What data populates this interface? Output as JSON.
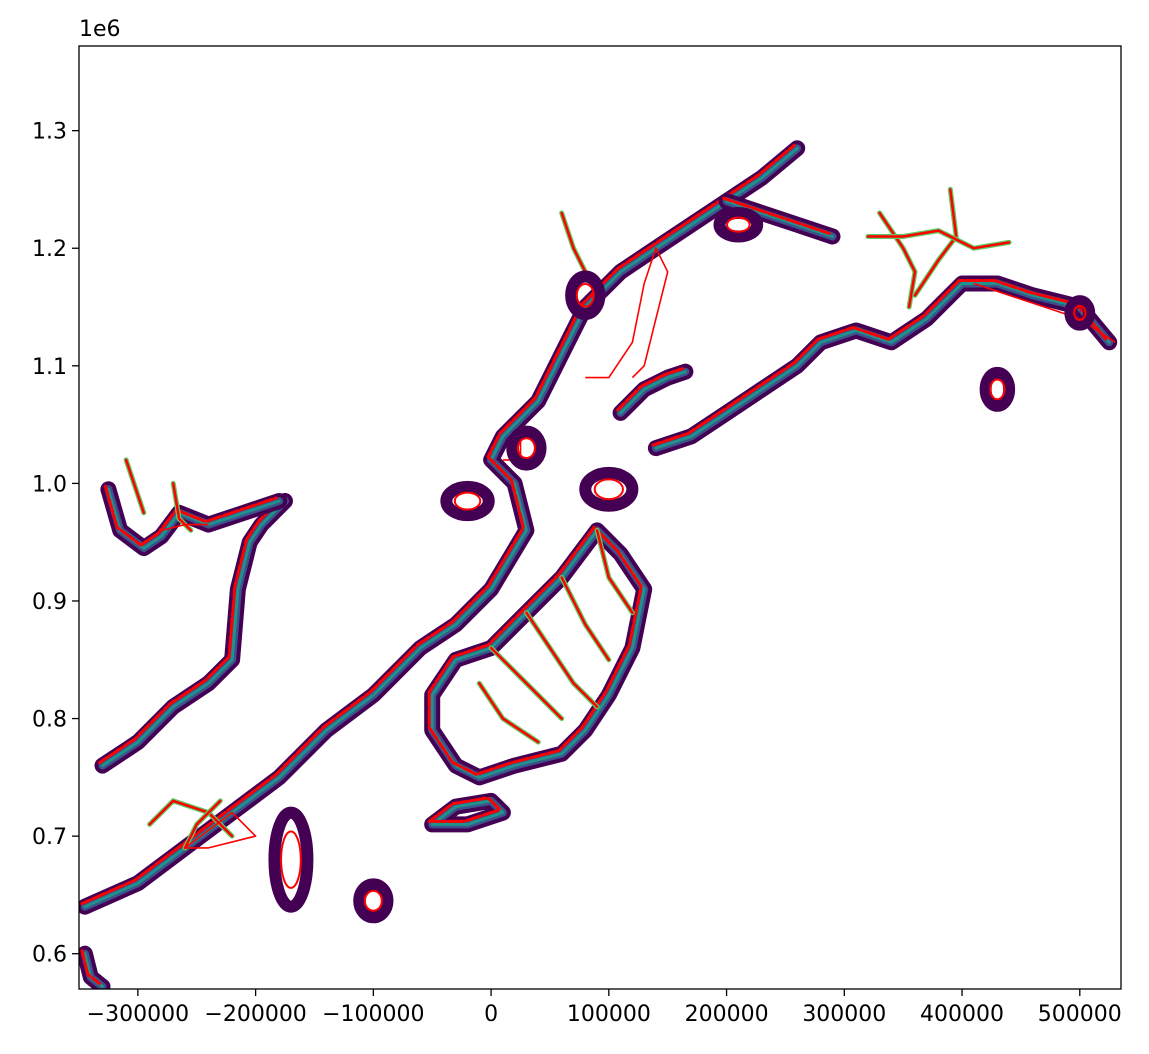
{
  "chart_data": {
    "type": "map",
    "title": "",
    "xlabel": "",
    "ylabel": "",
    "xlim": [
      -350000,
      535000
    ],
    "ylim": [
      570000,
      1372000
    ],
    "x_ticks": [
      -300000,
      -200000,
      -100000,
      0,
      100000,
      200000,
      300000,
      400000,
      500000
    ],
    "x_tick_labels": [
      "−300000",
      "−200000",
      "−100000",
      "0",
      "100000",
      "200000",
      "300000",
      "400000",
      "500000"
    ],
    "y_ticks": [
      600000,
      700000,
      800000,
      900000,
      1000000,
      1100000,
      1200000,
      1300000
    ],
    "y_tick_labels": [
      "0.6",
      "0.7",
      "0.8",
      "0.9",
      "1.0",
      "1.1",
      "1.2",
      "1.3"
    ],
    "y_offset_label": "1e6",
    "grid": false,
    "legend": "none",
    "colors": {
      "raster_low": "#440154",
      "raster_mid": "#3b528b",
      "raster_teal": "#21918c",
      "raster_green": "#5ec962",
      "raster_high": "#fde725",
      "outline": "#ff0000"
    },
    "layers": [
      {
        "name": "coastline-band",
        "kind": "raster",
        "paths": [
          [
            [
              -330000,
              760000
            ],
            [
              -300000,
              780000
            ],
            [
              -270000,
              810000
            ],
            [
              -240000,
              830000
            ],
            [
              -220000,
              850000
            ],
            [
              -215000,
              910000
            ],
            [
              -205000,
              950000
            ],
            [
              -195000,
              965000
            ],
            [
              -175000,
              985000
            ]
          ],
          [
            [
              -325000,
              995000
            ],
            [
              -315000,
              960000
            ],
            [
              -295000,
              945000
            ],
            [
              -280000,
              955000
            ],
            [
              -265000,
              975000
            ],
            [
              -240000,
              965000
            ],
            [
              -210000,
              975000
            ],
            [
              -180000,
              985000
            ]
          ],
          [
            [
              -345000,
              640000
            ],
            [
              -300000,
              660000
            ],
            [
              -260000,
              690000
            ],
            [
              -220000,
              720000
            ],
            [
              -180000,
              750000
            ],
            [
              -140000,
              790000
            ],
            [
              -100000,
              820000
            ],
            [
              -60000,
              860000
            ],
            [
              -30000,
              880000
            ],
            [
              0,
              910000
            ],
            [
              30000,
              960000
            ],
            [
              20000,
              1000000
            ],
            [
              0,
              1020000
            ],
            [
              10000,
              1040000
            ],
            [
              40000,
              1070000
            ],
            [
              60000,
              1110000
            ],
            [
              80000,
              1150000
            ],
            [
              110000,
              1180000
            ],
            [
              140000,
              1200000
            ],
            [
              170000,
              1220000
            ],
            [
              200000,
              1240000
            ],
            [
              230000,
              1260000
            ],
            [
              260000,
              1285000
            ]
          ],
          [
            [
              200000,
              1240000
            ],
            [
              230000,
              1230000
            ],
            [
              260000,
              1220000
            ],
            [
              290000,
              1210000
            ]
          ],
          [
            [
              110000,
              1060000
            ],
            [
              130000,
              1080000
            ],
            [
              150000,
              1090000
            ],
            [
              165000,
              1095000
            ]
          ],
          [
            [
              140000,
              1030000
            ],
            [
              170000,
              1040000
            ],
            [
              200000,
              1060000
            ],
            [
              230000,
              1080000
            ],
            [
              260000,
              1100000
            ],
            [
              280000,
              1120000
            ],
            [
              310000,
              1130000
            ],
            [
              340000,
              1120000
            ],
            [
              370000,
              1140000
            ],
            [
              400000,
              1170000
            ],
            [
              430000,
              1170000
            ],
            [
              460000,
              1160000
            ],
            [
              500000,
              1150000
            ],
            [
              525000,
              1120000
            ]
          ],
          [
            [
              -50000,
              820000
            ],
            [
              -30000,
              850000
            ],
            [
              0,
              860000
            ],
            [
              30000,
              890000
            ],
            [
              60000,
              920000
            ],
            [
              90000,
              960000
            ],
            [
              110000,
              940000
            ],
            [
              130000,
              910000
            ],
            [
              120000,
              860000
            ],
            [
              100000,
              820000
            ],
            [
              80000,
              790000
            ],
            [
              60000,
              770000
            ],
            [
              20000,
              760000
            ],
            [
              -10000,
              750000
            ],
            [
              -30000,
              760000
            ],
            [
              -50000,
              790000
            ],
            [
              -50000,
              820000
            ]
          ],
          [
            [
              -50000,
              710000
            ],
            [
              -30000,
              725000
            ],
            [
              0,
              730000
            ],
            [
              10000,
              720000
            ],
            [
              -20000,
              710000
            ],
            [
              -50000,
              710000
            ]
          ],
          [
            [
              -345000,
              600000
            ],
            [
              -340000,
              580000
            ],
            [
              -330000,
              572000
            ]
          ]
        ]
      },
      {
        "name": "river-network",
        "kind": "lines",
        "paths": [
          [
            [
              -310000,
              1020000
            ],
            [
              -300000,
              990000
            ],
            [
              -295000,
              975000
            ]
          ],
          [
            [
              -270000,
              1000000
            ],
            [
              -265000,
              970000
            ],
            [
              -255000,
              960000
            ]
          ],
          [
            [
              60000,
              1230000
            ],
            [
              70000,
              1200000
            ],
            [
              80000,
              1180000
            ]
          ],
          [
            [
              330000,
              1230000
            ],
            [
              350000,
              1200000
            ],
            [
              360000,
              1180000
            ],
            [
              355000,
              1150000
            ]
          ],
          [
            [
              390000,
              1250000
            ],
            [
              395000,
              1210000
            ],
            [
              380000,
              1190000
            ],
            [
              360000,
              1160000
            ]
          ],
          [
            [
              320000,
              1210000
            ],
            [
              350000,
              1210000
            ],
            [
              380000,
              1215000
            ],
            [
              410000,
              1200000
            ],
            [
              440000,
              1205000
            ]
          ],
          [
            [
              0,
              860000
            ],
            [
              30000,
              830000
            ],
            [
              60000,
              800000
            ]
          ],
          [
            [
              30000,
              890000
            ],
            [
              50000,
              860000
            ],
            [
              70000,
              830000
            ],
            [
              90000,
              810000
            ]
          ],
          [
            [
              60000,
              920000
            ],
            [
              80000,
              880000
            ],
            [
              100000,
              850000
            ]
          ],
          [
            [
              90000,
              960000
            ],
            [
              100000,
              920000
            ],
            [
              120000,
              890000
            ]
          ],
          [
            [
              -10000,
              830000
            ],
            [
              10000,
              800000
            ],
            [
              40000,
              780000
            ]
          ],
          [
            [
              -290000,
              710000
            ],
            [
              -270000,
              730000
            ],
            [
              -240000,
              720000
            ],
            [
              -220000,
              700000
            ]
          ],
          [
            [
              -260000,
              690000
            ],
            [
              -250000,
              710000
            ],
            [
              -230000,
              730000
            ]
          ]
        ]
      },
      {
        "name": "basin-outlines",
        "kind": "polygons",
        "paths": [
          [
            [
              80000,
              1090000
            ],
            [
              100000,
              1090000
            ],
            [
              120000,
              1120000
            ],
            [
              130000,
              1170000
            ],
            [
              140000,
              1200000
            ],
            [
              150000,
              1180000
            ],
            [
              140000,
              1140000
            ],
            [
              130000,
              1100000
            ],
            [
              120000,
              1090000
            ]
          ],
          [
            [
              -280000,
              960000
            ],
            [
              -260000,
              965000
            ],
            [
              -240000,
              965000
            ]
          ],
          [
            [
              410000,
              1170000
            ],
            [
              470000,
              1150000
            ],
            [
              500000,
              1140000
            ],
            [
              530000,
              1120000
            ]
          ],
          [
            [
              10000,
              1020000
            ],
            [
              25000,
              1020000
            ],
            [
              25000,
              1040000
            ]
          ],
          [
            [
              -260000,
              690000
            ],
            [
              -220000,
              720000
            ],
            [
              -200000,
              700000
            ],
            [
              -240000,
              690000
            ],
            [
              -260000,
              690000
            ]
          ]
        ]
      },
      {
        "name": "lakes",
        "kind": "blobs",
        "items": [
          [
            -170000,
            680000,
            14000,
            40000
          ],
          [
            -100000,
            645000,
            12000,
            14000
          ],
          [
            -20000,
            985000,
            18000,
            12000
          ],
          [
            100000,
            995000,
            20000,
            14000
          ],
          [
            430000,
            1080000,
            10000,
            14000
          ],
          [
            500000,
            1145000,
            8000,
            10000
          ],
          [
            210000,
            1220000,
            16000,
            10000
          ],
          [
            80000,
            1160000,
            12000,
            16000
          ],
          [
            30000,
            1030000,
            12000,
            14000
          ]
        ]
      }
    ]
  }
}
